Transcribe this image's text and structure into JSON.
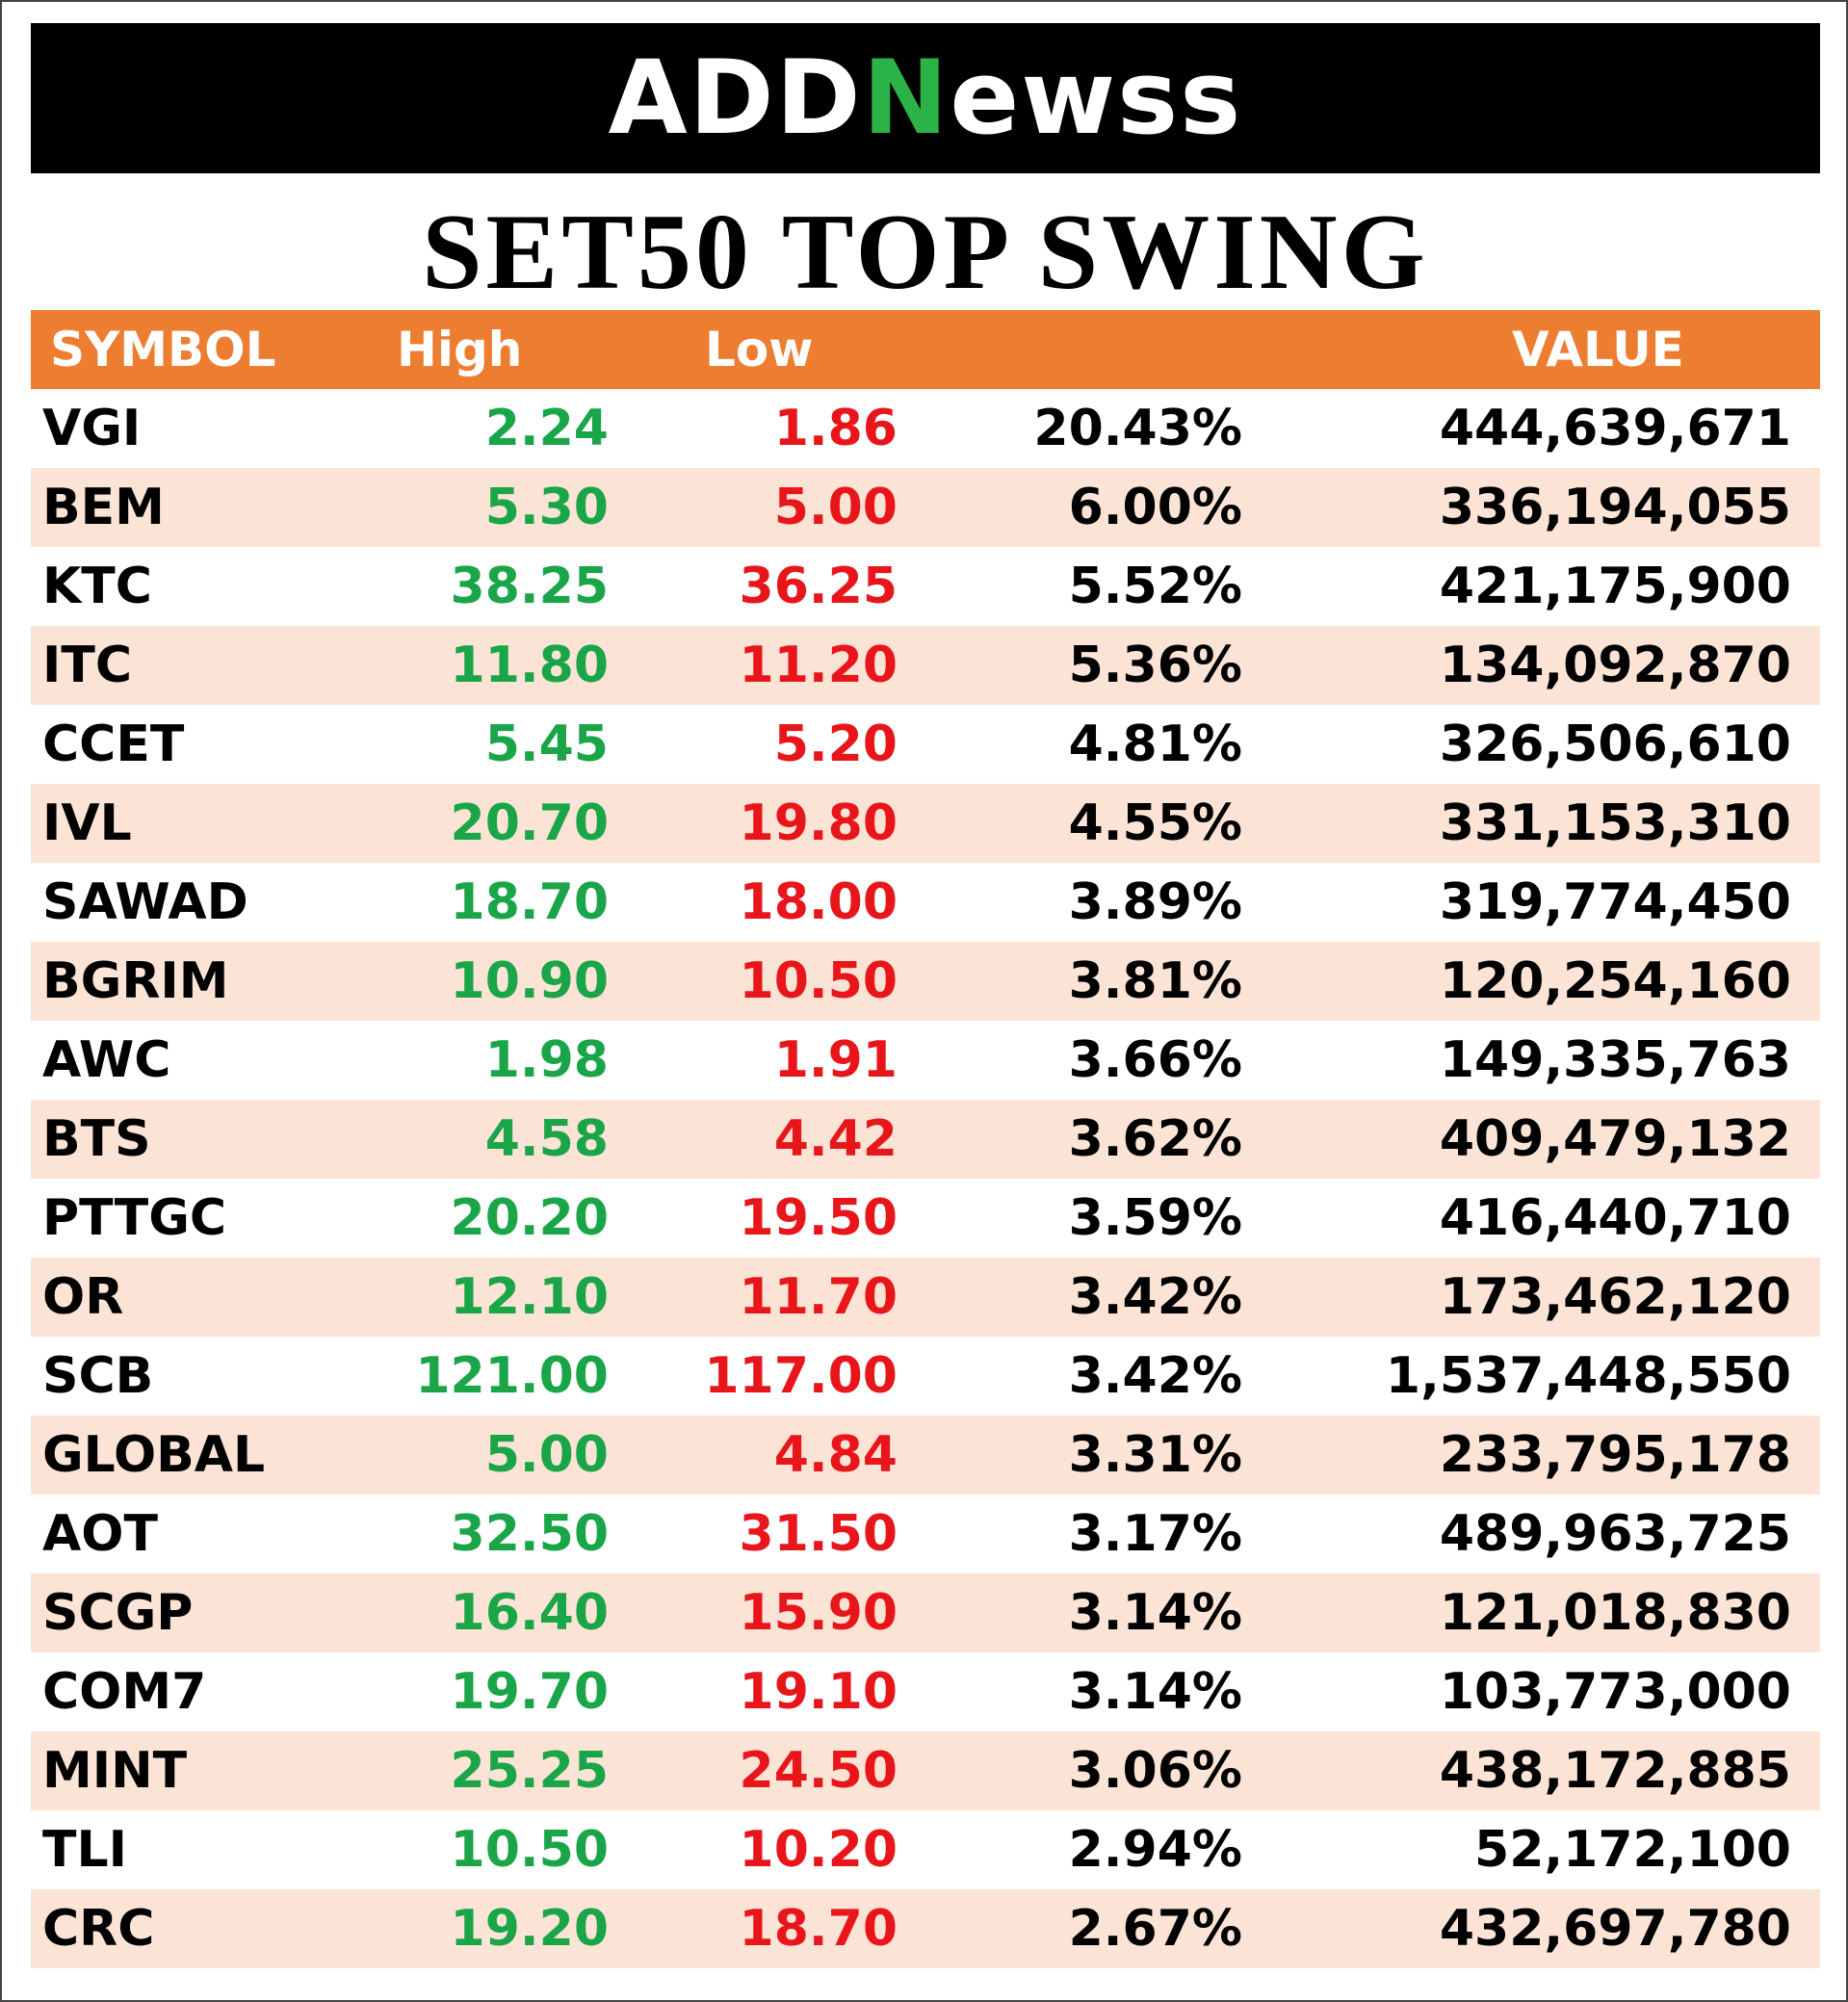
{
  "brand": {
    "logo_pre": "ADD",
    "logo_n": "N",
    "logo_post": "ewss"
  },
  "title": "SET50 TOP SWING",
  "table": {
    "headers": {
      "symbol": "SYMBOL",
      "high": "High",
      "low": "Low",
      "pct": "",
      "value": "VALUE"
    },
    "rows": [
      {
        "symbol": "VGI",
        "high": "2.24",
        "low": "1.86",
        "pct": "20.43%",
        "value": "444,639,671"
      },
      {
        "symbol": "BEM",
        "high": "5.30",
        "low": "5.00",
        "pct": "6.00%",
        "value": "336,194,055"
      },
      {
        "symbol": "KTC",
        "high": "38.25",
        "low": "36.25",
        "pct": "5.52%",
        "value": "421,175,900"
      },
      {
        "symbol": "ITC",
        "high": "11.80",
        "low": "11.20",
        "pct": "5.36%",
        "value": "134,092,870"
      },
      {
        "symbol": "CCET",
        "high": "5.45",
        "low": "5.20",
        "pct": "4.81%",
        "value": "326,506,610"
      },
      {
        "symbol": "IVL",
        "high": "20.70",
        "low": "19.80",
        "pct": "4.55%",
        "value": "331,153,310"
      },
      {
        "symbol": "SAWAD",
        "high": "18.70",
        "low": "18.00",
        "pct": "3.89%",
        "value": "319,774,450"
      },
      {
        "symbol": "BGRIM",
        "high": "10.90",
        "low": "10.50",
        "pct": "3.81%",
        "value": "120,254,160"
      },
      {
        "symbol": "AWC",
        "high": "1.98",
        "low": "1.91",
        "pct": "3.66%",
        "value": "149,335,763"
      },
      {
        "symbol": "BTS",
        "high": "4.58",
        "low": "4.42",
        "pct": "3.62%",
        "value": "409,479,132"
      },
      {
        "symbol": "PTTGC",
        "high": "20.20",
        "low": "19.50",
        "pct": "3.59%",
        "value": "416,440,710"
      },
      {
        "symbol": "OR",
        "high": "12.10",
        "low": "11.70",
        "pct": "3.42%",
        "value": "173,462,120"
      },
      {
        "symbol": "SCB",
        "high": "121.00",
        "low": "117.00",
        "pct": "3.42%",
        "value": "1,537,448,550"
      },
      {
        "symbol": "GLOBAL",
        "high": "5.00",
        "low": "4.84",
        "pct": "3.31%",
        "value": "233,795,178"
      },
      {
        "symbol": "AOT",
        "high": "32.50",
        "low": "31.50",
        "pct": "3.17%",
        "value": "489,963,725"
      },
      {
        "symbol": "SCGP",
        "high": "16.40",
        "low": "15.90",
        "pct": "3.14%",
        "value": "121,018,830"
      },
      {
        "symbol": "COM7",
        "high": "19.70",
        "low": "19.10",
        "pct": "3.14%",
        "value": "103,773,000"
      },
      {
        "symbol": "MINT",
        "high": "25.25",
        "low": "24.50",
        "pct": "3.06%",
        "value": "438,172,885"
      },
      {
        "symbol": "TLI",
        "high": "10.50",
        "low": "10.20",
        "pct": "2.94%",
        "value": "52,172,100"
      },
      {
        "symbol": "CRC",
        "high": "19.20",
        "low": "18.70",
        "pct": "2.67%",
        "value": "432,697,780"
      }
    ]
  },
  "colors": {
    "header_bg": "#ed7d31",
    "stripe_bg": "#fbe4d5",
    "high": "#1aa548",
    "low": "#e8161b",
    "banner_bg": "#000000"
  }
}
